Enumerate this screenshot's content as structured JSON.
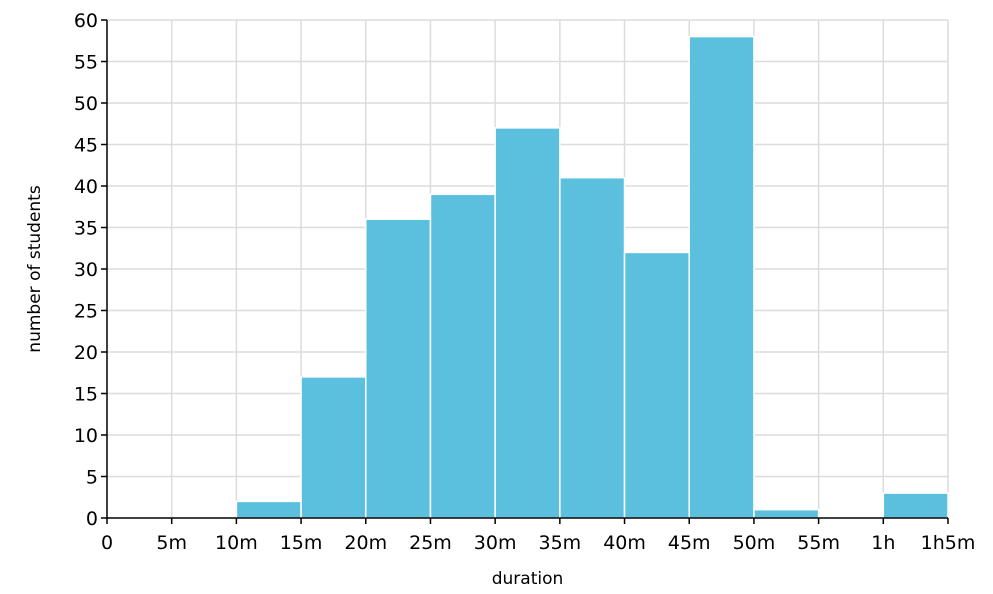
{
  "chart_data": {
    "type": "bar",
    "subtype": "histogram",
    "xlabel": "duration",
    "ylabel": "number of students",
    "x_unit": "minutes",
    "xlim": [
      0,
      65
    ],
    "ylim": [
      0,
      60
    ],
    "x_ticks": [
      {
        "value": 0,
        "label": "0"
      },
      {
        "value": 5,
        "label": "5m"
      },
      {
        "value": 10,
        "label": "10m"
      },
      {
        "value": 15,
        "label": "15m"
      },
      {
        "value": 20,
        "label": "20m"
      },
      {
        "value": 25,
        "label": "25m"
      },
      {
        "value": 30,
        "label": "30m"
      },
      {
        "value": 35,
        "label": "35m"
      },
      {
        "value": 40,
        "label": "40m"
      },
      {
        "value": 45,
        "label": "45m"
      },
      {
        "value": 50,
        "label": "50m"
      },
      {
        "value": 55,
        "label": "55m"
      },
      {
        "value": 60,
        "label": "1h"
      },
      {
        "value": 65,
        "label": "1h5m"
      }
    ],
    "y_ticks": [
      0,
      5,
      10,
      15,
      20,
      25,
      30,
      35,
      40,
      45,
      50,
      55,
      60
    ],
    "bins": [
      {
        "x0": 10,
        "x1": 15,
        "value": 2
      },
      {
        "x0": 15,
        "x1": 20,
        "value": 17
      },
      {
        "x0": 20,
        "x1": 25,
        "value": 36
      },
      {
        "x0": 25,
        "x1": 30,
        "value": 39
      },
      {
        "x0": 30,
        "x1": 35,
        "value": 47
      },
      {
        "x0": 35,
        "x1": 40,
        "value": 41
      },
      {
        "x0": 40,
        "x1": 45,
        "value": 32
      },
      {
        "x0": 45,
        "x1": 50,
        "value": 58
      },
      {
        "x0": 50,
        "x1": 55,
        "value": 1
      },
      {
        "x0": 60,
        "x1": 65,
        "value": 3
      }
    ],
    "grid": true,
    "bar_color": "#5bc0de"
  }
}
